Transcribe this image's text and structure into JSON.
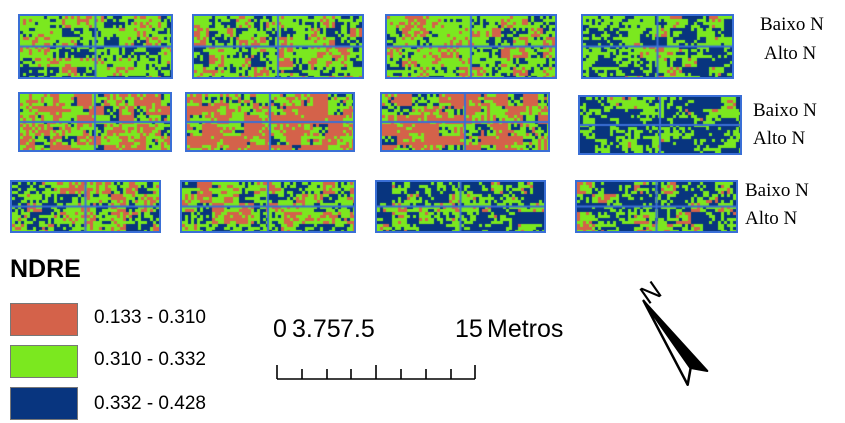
{
  "colors": {
    "low": "#d4624a",
    "mid": "#7be81f",
    "high": "#08357f",
    "outline": "#3a6fd6"
  },
  "row_labels": [
    {
      "top": "Baixo N",
      "bottom": "Alto N"
    },
    {
      "top": "Baixo N",
      "bottom": "Alto N"
    },
    {
      "top": "Baixo N",
      "bottom": "Alto N"
    }
  ],
  "legend": {
    "title": "NDRE",
    "items": [
      {
        "label": "0.133 - 0.310",
        "color": "#d4624a"
      },
      {
        "label": "0.310 - 0.332",
        "color": "#7be81f"
      },
      {
        "label": "0.332 - 0.428",
        "color": "#08357f"
      }
    ]
  },
  "scalebar": {
    "ticks": [
      "0",
      "3.75",
      "7.5",
      "15"
    ],
    "unit": "Metros"
  },
  "north_arrow": {
    "label": "N"
  },
  "plots": [
    {
      "mix": [
        0.25,
        0.38,
        0.37
      ]
    },
    {
      "mix": [
        0.3,
        0.33,
        0.37
      ]
    },
    {
      "mix": [
        0.3,
        0.4,
        0.3
      ]
    },
    {
      "mix": [
        0.18,
        0.37,
        0.45
      ]
    },
    {
      "mix": [
        0.45,
        0.3,
        0.25
      ]
    },
    {
      "mix": [
        0.55,
        0.25,
        0.2
      ]
    },
    {
      "mix": [
        0.5,
        0.28,
        0.22
      ]
    },
    {
      "mix": [
        0.12,
        0.33,
        0.55
      ]
    },
    {
      "mix": [
        0.3,
        0.3,
        0.4
      ]
    },
    {
      "mix": [
        0.35,
        0.33,
        0.32
      ]
    },
    {
      "mix": [
        0.2,
        0.3,
        0.5
      ]
    },
    {
      "mix": [
        0.25,
        0.25,
        0.5
      ]
    }
  ]
}
